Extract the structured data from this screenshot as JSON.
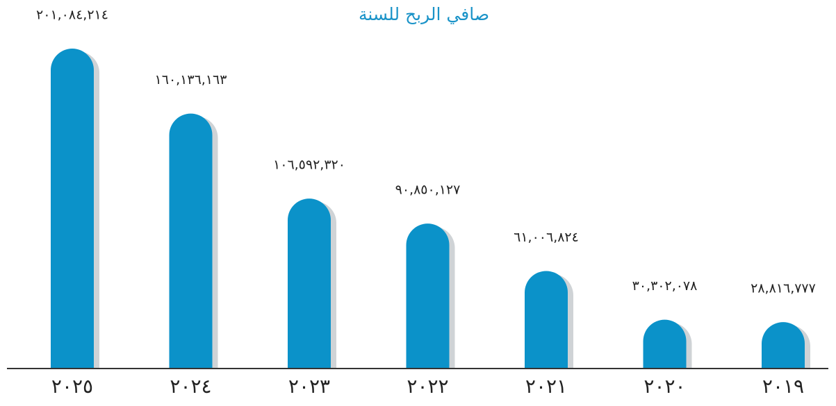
{
  "chart_data": {
    "type": "bar",
    "title": "صافي الربح للسنة",
    "categories": [
      "٢٠٢٥",
      "٢٠٢٤",
      "٢٠٢٣",
      "٢٠٢٢",
      "٢٠٢١",
      "٢٠٢٠",
      "٢٠١٩"
    ],
    "values": [
      201084214,
      160136163,
      106592320,
      90850127,
      61006824,
      30302078,
      28816777
    ],
    "value_labels": [
      "٢٠١,٠٨٤,٢١٤",
      "١٦٠,١٣٦,١٦٣",
      "١٠٦,٥٩٢,٣٢٠",
      "٩٠,٨٥٠,١٢٧",
      "٦١,٠٠٦,٨٢٤",
      "٣٠,٣٠٢,٠٧٨",
      "٢٨,٨١٦,٧٧٧"
    ],
    "color": "#0b92c9"
  }
}
